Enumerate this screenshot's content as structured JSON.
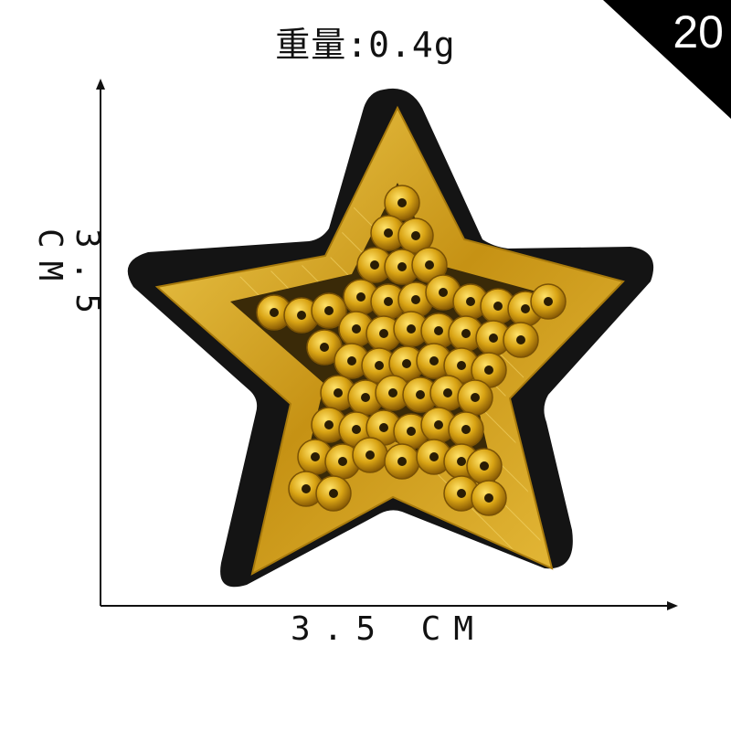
{
  "header": {
    "weight_label": "重量:0.4g"
  },
  "badge": {
    "number": "20",
    "color": "#000000"
  },
  "dimensions": {
    "height_label": "3.5 CM",
    "width_label": "3.5 CM"
  },
  "patch": {
    "felt_color": "#111111",
    "border_color": "#c8a018",
    "sequin_color": "#d4a20c"
  }
}
